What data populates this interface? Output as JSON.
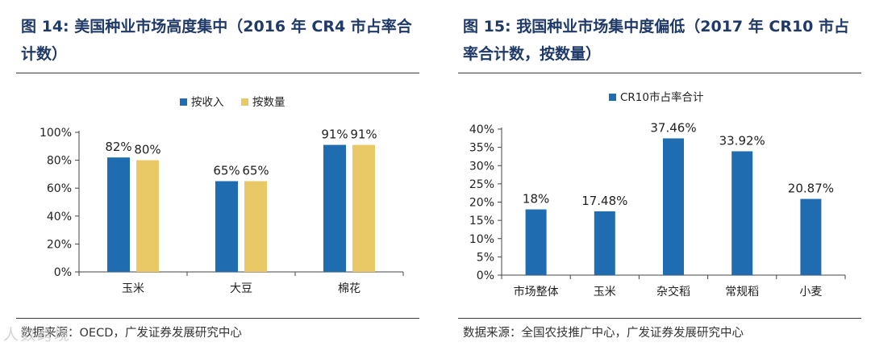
{
  "charts": {
    "left": {
      "title": "图 14:  美国种业市场高度集中（2016 年 CR4 市占率合计数）",
      "source": "数据来源：OECD，广发证券发展研究中心"
    },
    "right": {
      "title": "图 15:  我国种业市场集中度偏低（2017 年 CR10 市占率合计数，按数量）",
      "source": "数据来源：全国农技推广中心，广发证券发展研究中心"
    }
  },
  "watermark": "人数跨境",
  "colors": {
    "blue": "#1f6cb0",
    "yellow": "#e8c965",
    "title": "#1f3a68"
  },
  "chart_data": [
    {
      "type": "bar",
      "title": "图 14:  美国种业市场高度集中（2016 年 CR4 市占率合计数）",
      "categories": [
        "玉米",
        "大豆",
        "棉花"
      ],
      "series": [
        {
          "name": "按收入",
          "values": [
            82,
            65,
            91
          ],
          "color": "#1f6cb0",
          "labels": [
            "82%",
            "65%",
            "91%"
          ]
        },
        {
          "name": "按数量",
          "values": [
            80,
            65,
            91
          ],
          "color": "#e8c965",
          "labels": [
            "80%",
            "65%",
            "91%"
          ]
        }
      ],
      "ylim": [
        0,
        100
      ],
      "yticks": [
        0,
        20,
        40,
        60,
        80,
        100
      ],
      "yticklabels": [
        "0%",
        "20%",
        "40%",
        "60%",
        "80%",
        "100%"
      ],
      "grid": false,
      "legend": "top-center",
      "xlabel": "",
      "ylabel": ""
    },
    {
      "type": "bar",
      "title": "图 15:  我国种业市场集中度偏低（2017 年 CR10 市占率合计数，按数量）",
      "categories": [
        "市场整体",
        "玉米",
        "杂交稻",
        "常规稻",
        "小麦"
      ],
      "series": [
        {
          "name": "CR10市占率合计",
          "values": [
            18,
            17.48,
            37.46,
            33.92,
            20.87
          ],
          "color": "#1f6cb0",
          "labels": [
            "18%",
            "17.48%",
            "37.46%",
            "33.92%",
            "20.87%"
          ]
        }
      ],
      "ylim": [
        0,
        40
      ],
      "yticks": [
        0,
        5,
        10,
        15,
        20,
        25,
        30,
        35,
        40
      ],
      "yticklabels": [
        "0%",
        "5%",
        "10%",
        "15%",
        "20%",
        "25%",
        "30%",
        "35%",
        "40%"
      ],
      "grid": false,
      "legend": "top-center",
      "xlabel": "",
      "ylabel": ""
    }
  ]
}
